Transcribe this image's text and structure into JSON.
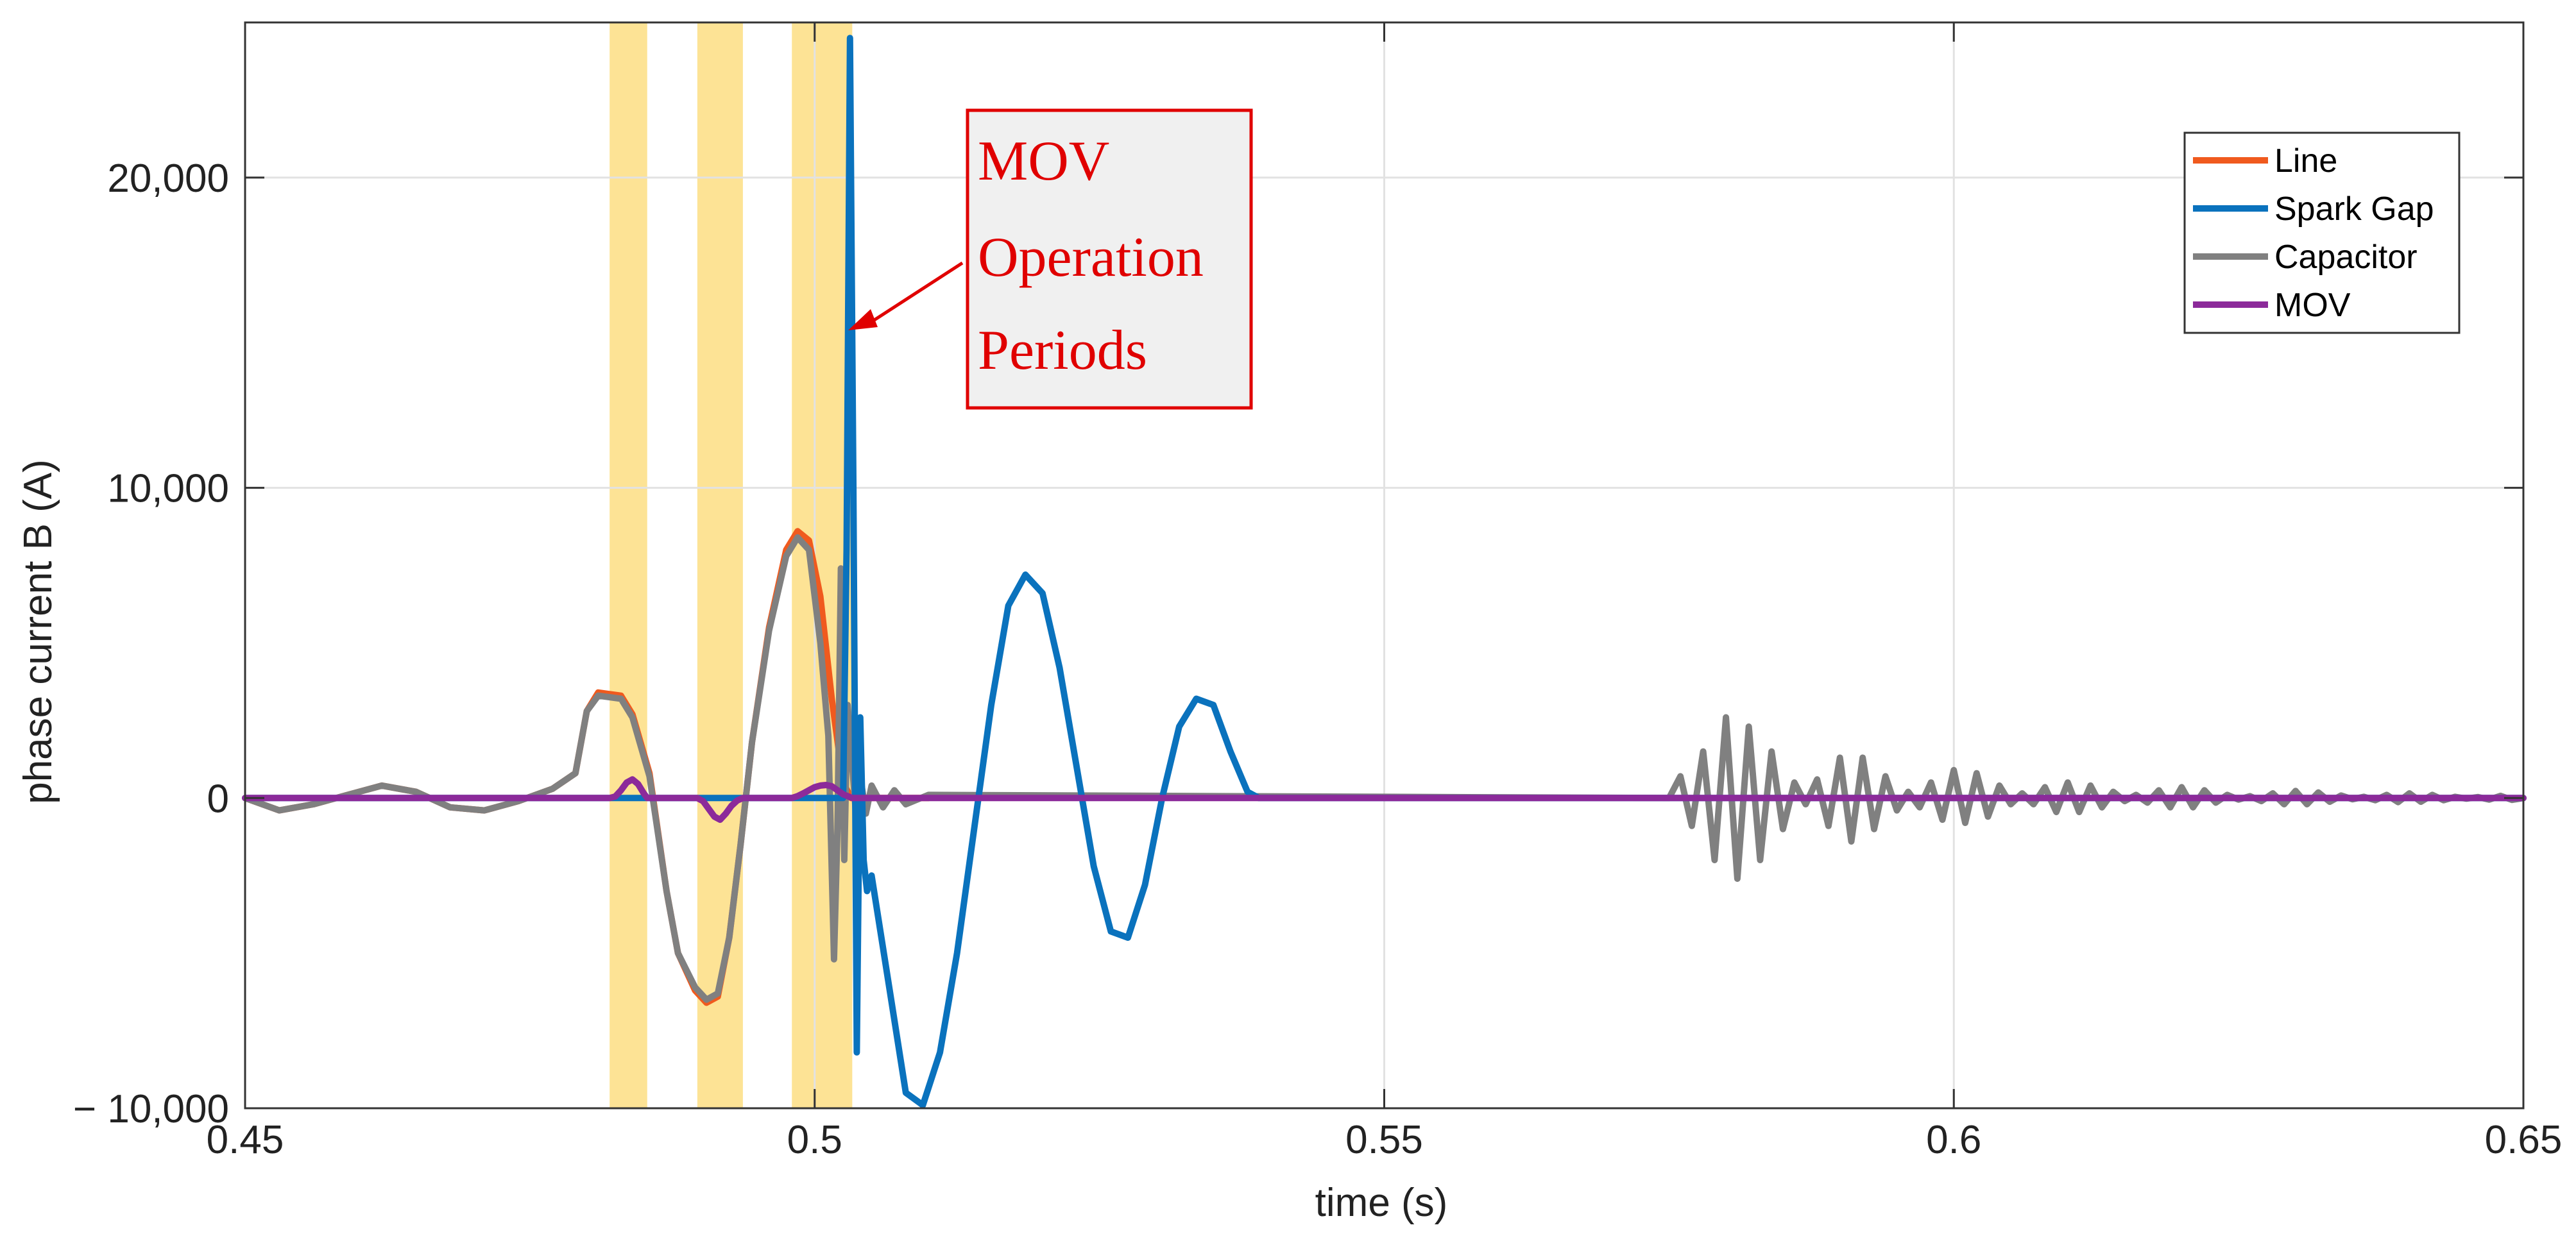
{
  "chart_data": {
    "type": "line",
    "title": "",
    "xlabel": "time (s)",
    "ylabel": "phase current B (A)",
    "xlim": [
      0.45,
      0.65
    ],
    "ylim": [
      -10000,
      25000
    ],
    "grid": true,
    "x_ticks": [
      0.45,
      0.5,
      0.55,
      0.6,
      0.65
    ],
    "x_tick_labels": [
      "0.45",
      "0.5",
      "0.55",
      "0.6",
      "0.65"
    ],
    "y_ticks": [
      -10000,
      0,
      10000,
      20000
    ],
    "y_tick_labels": [
      "− 10,000",
      "0",
      "10,000",
      "20,000"
    ],
    "legend_position": "top-right",
    "colors": {
      "line": "#f05a1e",
      "spark_gap": "#0a72bd",
      "capacitor": "#808080",
      "mov": "#8c2a9a",
      "highlight": "#fde08a",
      "annotation": "#e00000",
      "annotation_box_fill": "#f0f0f0",
      "grid": "#e2e2e2",
      "axis": "#333333"
    },
    "highlight_periods": [
      {
        "start": 0.482,
        "end": 0.4853
      },
      {
        "start": 0.4897,
        "end": 0.4937
      },
      {
        "start": 0.498,
        "end": 0.5033
      }
    ],
    "annotation": {
      "lines": [
        "MOV",
        "Operation",
        "Periods"
      ],
      "arrow_target": {
        "x": 0.504,
        "y": 15000
      }
    },
    "series": [
      {
        "name": "Line",
        "color": "#f05a1e",
        "x": [
          0.45,
          0.453,
          0.456,
          0.459,
          0.462,
          0.465,
          0.468,
          0.471,
          0.474,
          0.477,
          0.479,
          0.48,
          0.481,
          0.483,
          0.484,
          0.4855,
          0.487,
          0.488,
          0.4895,
          0.4905,
          0.4915,
          0.4925,
          0.4935,
          0.4945,
          0.496,
          0.4975,
          0.4985,
          0.4995,
          0.5005,
          0.5015,
          0.5025,
          0.5032,
          0.5036,
          0.504,
          0.506,
          0.51
        ],
        "y": [
          0,
          -400,
          -200,
          100,
          400,
          200,
          -300,
          -400,
          -100,
          300,
          800,
          2800,
          3400,
          3300,
          2700,
          800,
          -3000,
          -5000,
          -6200,
          -6600,
          -6400,
          -4500,
          -1500,
          1800,
          5500,
          8000,
          8600,
          8300,
          6500,
          3200,
          500,
          0,
          0,
          0,
          0,
          0
        ]
      },
      {
        "name": "Spark Gap",
        "color": "#0a72bd",
        "x": [
          0.45,
          0.5025,
          0.5028,
          0.5031,
          0.5034,
          0.5037,
          0.504,
          0.5043,
          0.5046,
          0.505,
          0.5065,
          0.508,
          0.5095,
          0.511,
          0.5125,
          0.514,
          0.5155,
          0.517,
          0.5185,
          0.52,
          0.5215,
          0.523,
          0.5245,
          0.526,
          0.5275,
          0.529,
          0.5305,
          0.532,
          0.5335,
          0.535,
          0.5365,
          0.538,
          0.539,
          0.55,
          0.65
        ],
        "y": [
          0,
          0,
          8000,
          24500,
          10000,
          -8200,
          2600,
          -2000,
          -3000,
          -2500,
          -6000,
          -9500,
          -9900,
          -8200,
          -5000,
          -1000,
          3000,
          6200,
          7200,
          6600,
          4200,
          1000,
          -2200,
          -4300,
          -4500,
          -2800,
          0,
          2300,
          3200,
          3000,
          1500,
          200,
          0,
          0,
          0
        ]
      },
      {
        "name": "Capacitor",
        "color": "#808080",
        "x": [
          0.45,
          0.453,
          0.456,
          0.459,
          0.462,
          0.465,
          0.468,
          0.471,
          0.474,
          0.477,
          0.479,
          0.48,
          0.481,
          0.483,
          0.484,
          0.4855,
          0.487,
          0.488,
          0.4895,
          0.4905,
          0.4915,
          0.4925,
          0.4935,
          0.4945,
          0.496,
          0.4975,
          0.4985,
          0.4995,
          0.5005,
          0.5012,
          0.5017,
          0.502,
          0.5023,
          0.5026,
          0.5029,
          0.5032,
          0.5036,
          0.504,
          0.5045,
          0.505,
          0.506,
          0.507,
          0.508,
          0.51,
          0.575,
          0.576,
          0.577,
          0.578,
          0.579,
          0.58,
          0.581,
          0.582,
          0.583,
          0.584,
          0.585,
          0.586,
          0.587,
          0.588,
          0.589,
          0.59,
          0.591,
          0.592,
          0.593,
          0.594,
          0.595,
          0.596,
          0.597,
          0.598,
          0.599,
          0.6,
          0.601,
          0.602,
          0.603,
          0.604,
          0.605,
          0.606,
          0.607,
          0.608,
          0.609,
          0.61,
          0.611,
          0.612,
          0.613,
          0.614,
          0.615,
          0.616,
          0.617,
          0.618,
          0.619,
          0.62,
          0.621,
          0.622,
          0.623,
          0.624,
          0.625,
          0.626,
          0.627,
          0.628,
          0.629,
          0.63,
          0.631,
          0.632,
          0.633,
          0.634,
          0.635,
          0.636,
          0.637,
          0.638,
          0.639,
          0.64,
          0.641,
          0.642,
          0.643,
          0.644,
          0.645,
          0.646,
          0.647,
          0.648,
          0.649,
          0.65
        ],
        "y": [
          0,
          -400,
          -200,
          100,
          400,
          200,
          -300,
          -400,
          -100,
          300,
          800,
          2800,
          3300,
          3200,
          2600,
          700,
          -3000,
          -5000,
          -6100,
          -6500,
          -6300,
          -4500,
          -1500,
          1800,
          5400,
          7800,
          8400,
          8000,
          5000,
          2000,
          -5200,
          -1000,
          7400,
          -2000,
          3000,
          1500,
          -400,
          700,
          -500,
          400,
          -300,
          250,
          -200,
          100,
          0,
          700,
          -900,
          1500,
          -2000,
          2600,
          -2600,
          2300,
          -2000,
          1500,
          -1000,
          500,
          -200,
          600,
          -900,
          1300,
          -1400,
          1300,
          -1000,
          700,
          -400,
          200,
          -300,
          500,
          -700,
          900,
          -800,
          800,
          -600,
          400,
          -200,
          150,
          -200,
          350,
          -450,
          500,
          -450,
          400,
          -300,
          200,
          -100,
          100,
          -150,
          250,
          -300,
          350,
          -300,
          250,
          -150,
          100,
          -50,
          60,
          -100,
          150,
          -200,
          230,
          -200,
          180,
          -120,
          80,
          -40,
          40,
          -70,
          100,
          -130,
          150,
          -120,
          100,
          -70,
          40,
          -20,
          30,
          -50,
          70,
          -60,
          0
        ]
      },
      {
        "name": "MOV",
        "color": "#8c2a9a",
        "x": [
          0.45,
          0.482,
          0.4825,
          0.483,
          0.4835,
          0.484,
          0.4845,
          0.485,
          0.4853,
          0.4897,
          0.4902,
          0.4907,
          0.4912,
          0.4917,
          0.4922,
          0.4927,
          0.4932,
          0.4937,
          0.498,
          0.4985,
          0.499,
          0.4995,
          0.5,
          0.5005,
          0.501,
          0.5015,
          0.502,
          0.5025,
          0.5033,
          0.65
        ],
        "y": [
          0,
          0,
          50,
          250,
          500,
          600,
          450,
          150,
          0,
          0,
          -100,
          -350,
          -600,
          -700,
          -500,
          -250,
          -80,
          0,
          0,
          60,
          150,
          250,
          350,
          400,
          420,
          380,
          250,
          120,
          0,
          0
        ]
      }
    ]
  }
}
